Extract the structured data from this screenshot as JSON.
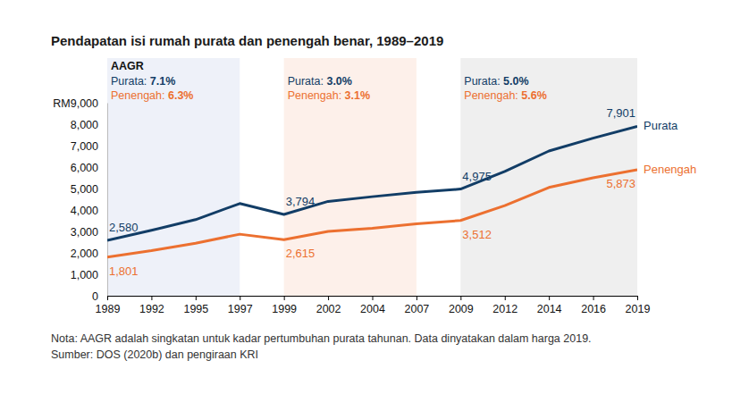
{
  "chart_data": {
    "type": "line",
    "title": "Pendapatan isi rumah purata dan penengah benar, 1989–2019",
    "categories": [
      "1989",
      "1992",
      "1995",
      "1997",
      "1999",
      "2002",
      "2004",
      "2007",
      "2009",
      "2012",
      "2014",
      "2016",
      "2019"
    ],
    "series": [
      {
        "name": "Purata",
        "color": "#123d66",
        "values": [
          2580,
          3050,
          3550,
          4300,
          3794,
          4400,
          4620,
          4820,
          4975,
          5800,
          6750,
          7350,
          7901
        ],
        "value_labels": [
          "2,580",
          null,
          null,
          null,
          "3,794",
          null,
          null,
          null,
          "4,975",
          null,
          null,
          null,
          "7,901"
        ]
      },
      {
        "name": "Penengah",
        "color": "#ec7030",
        "values": [
          1801,
          2100,
          2450,
          2870,
          2615,
          3000,
          3150,
          3350,
          3512,
          4200,
          5050,
          5500,
          5873
        ],
        "value_labels": [
          "1,801",
          null,
          null,
          null,
          "2,615",
          null,
          null,
          null,
          "3,512",
          null,
          null,
          null,
          "5,873"
        ]
      }
    ],
    "ylim": [
      0,
      9000
    ],
    "yticks": [
      0,
      {
        "value": 1000,
        "label": "1,000"
      },
      {
        "value": 2000,
        "label": "2,000"
      },
      {
        "value": 3000,
        "label": "3,000"
      },
      {
        "value": 4000,
        "label": "4,000"
      },
      {
        "value": 5000,
        "label": "5,000"
      },
      {
        "value": 6000,
        "label": "6,000"
      },
      {
        "value": 7000,
        "label": "7,000"
      },
      {
        "value": 8000,
        "label": "8,000"
      },
      {
        "value": 9000,
        "label": "RM9,000"
      }
    ],
    "grid": false,
    "data_labels": true,
    "periods": [
      {
        "from": "1989",
        "to": "1997",
        "color": "#eef1f9",
        "heading": "AAGR",
        "rates": [
          {
            "prefix": "Purata: ",
            "value": 7.1,
            "label": "7.1%"
          },
          {
            "prefix": "Penengah: ",
            "value": 6.3,
            "label": "6.3%"
          }
        ]
      },
      {
        "from": "1999",
        "to": "2007",
        "color": "#fdf0ea",
        "rates": [
          {
            "prefix": "Purata: ",
            "value": 3.0,
            "label": "3.0%"
          },
          {
            "prefix": "Penengah: ",
            "value": 3.1,
            "label": "3.1%"
          }
        ]
      },
      {
        "from": "2009",
        "to": "2019",
        "color": "#efefef",
        "rates": [
          {
            "prefix": "Purata: ",
            "value": 5.0,
            "label": "5.0%"
          },
          {
            "prefix": "Penengah: ",
            "value": 5.6,
            "label": "5.6%"
          }
        ]
      }
    ],
    "notes": [
      "Nota: AAGR adalah singkatan untuk kadar pertumbuhan purata tahunan. Data dinyatakan dalam harga 2019.",
      "Sumber: DOS (2020b) dan pengiraan KRI"
    ]
  }
}
